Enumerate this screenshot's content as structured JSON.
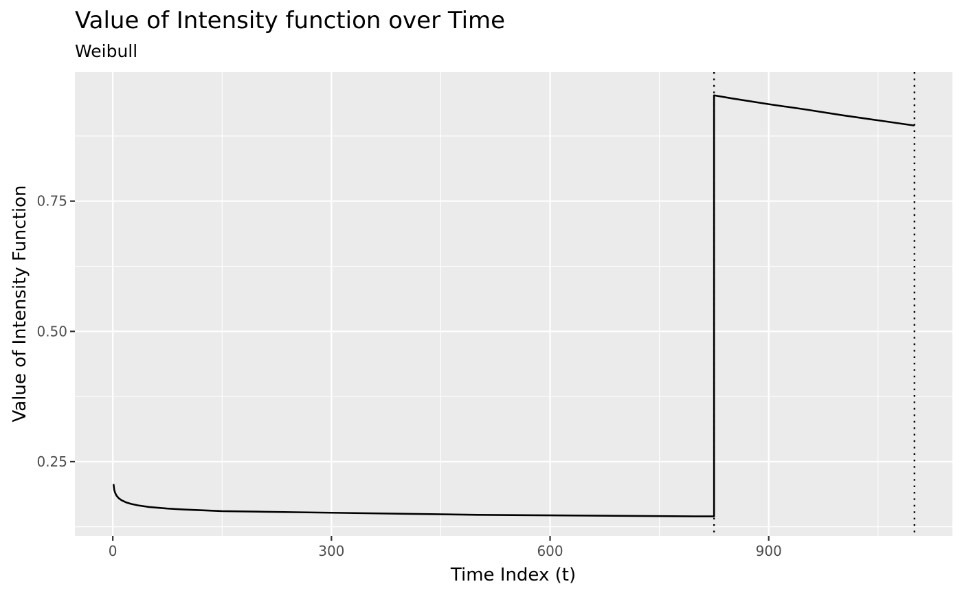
{
  "chart_data": {
    "type": "line",
    "title": "Value of Intensity function over Time",
    "subtitle": "Weibull",
    "xlabel": "Time Index (t)",
    "ylabel": "Value of Intensity Function",
    "xlim": [
      -52,
      1152
    ],
    "ylim": [
      0.1075,
      0.9975
    ],
    "x_ticks": [
      0,
      300,
      600,
      900
    ],
    "x_tick_labels": [
      "0",
      "300",
      "600",
      "900"
    ],
    "y_ticks": [
      0.25,
      0.5,
      0.75
    ],
    "y_tick_labels": [
      "0.25",
      "0.50",
      "0.75"
    ],
    "grid": true,
    "legend": "none",
    "colors": {
      "panel_background": "#ebebeb",
      "grid_major": "#ffffff",
      "line": "#000000",
      "vline": "#000000"
    },
    "series": [
      {
        "x": [
          1,
          2,
          3,
          5,
          8,
          12,
          18,
          25,
          35,
          50,
          75,
          100,
          150,
          200,
          250,
          300,
          400,
          500,
          600,
          700,
          800,
          825,
          825,
          850,
          900,
          950,
          1000,
          1050,
          1100
        ],
        "values": [
          0.207,
          0.196,
          0.191,
          0.185,
          0.18,
          0.176,
          0.172,
          0.169,
          0.166,
          0.163,
          0.16,
          0.158,
          0.155,
          0.154,
          0.153,
          0.152,
          0.15,
          0.148,
          0.147,
          0.146,
          0.145,
          0.145,
          0.953,
          0.947,
          0.936,
          0.926,
          0.915,
          0.905,
          0.895
        ]
      }
    ],
    "vlines": [
      825,
      1100
    ]
  }
}
